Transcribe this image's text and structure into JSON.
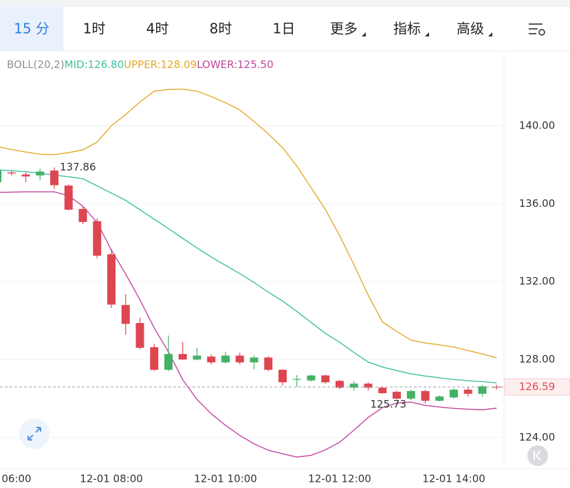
{
  "tabs": [
    "15 分",
    "1时",
    "4时",
    "8时",
    "1日",
    "更多",
    "指标",
    "高级"
  ],
  "active_tab": 0,
  "chart_data": {
    "type": "candlestick",
    "indicator": "BOLL(20,2)",
    "categories": [
      "06:00",
      null,
      null,
      null,
      null,
      null,
      null,
      null,
      "12-01 08:00",
      null,
      null,
      null,
      null,
      null,
      null,
      null,
      "12-01 10:00",
      null,
      null,
      null,
      null,
      null,
      null,
      null,
      "12-01 12:00",
      null,
      null,
      null,
      null,
      null,
      null,
      null,
      "12-01 14:00",
      null,
      null,
      null
    ],
    "open": [
      137.1,
      137.6,
      137.5,
      137.45,
      137.7,
      136.93,
      135.73,
      135.1,
      133.4,
      130.8,
      129.87,
      128.63,
      127.47,
      128.28,
      128.0,
      128.15,
      127.85,
      128.2,
      127.85,
      128.1,
      127.47,
      126.97,
      126.92,
      127.18,
      126.9,
      126.55,
      126.76,
      126.55,
      126.34,
      125.99,
      126.38,
      125.88,
      126.05,
      126.45,
      126.24,
      126.6
    ],
    "high": [
      137.8,
      137.7,
      137.6,
      137.8,
      137.86,
      136.98,
      135.83,
      135.24,
      133.68,
      131.35,
      130.15,
      128.81,
      129.23,
      128.9,
      128.6,
      128.26,
      128.4,
      128.35,
      128.2,
      128.17,
      127.5,
      127.2,
      127.2,
      127.22,
      126.95,
      126.9,
      126.83,
      126.62,
      126.4,
      126.45,
      126.45,
      126.15,
      126.52,
      126.59,
      126.7,
      126.7
    ],
    "low": [
      137.0,
      137.45,
      137.1,
      137.2,
      136.75,
      135.66,
      134.95,
      133.19,
      130.65,
      129.27,
      128.53,
      127.4,
      127.4,
      127.98,
      127.95,
      127.75,
      127.8,
      127.75,
      127.5,
      127.4,
      126.66,
      126.6,
      126.87,
      126.76,
      126.48,
      126.41,
      126.41,
      126.23,
      125.95,
      125.9,
      125.73,
      125.85,
      126.0,
      126.1,
      126.1,
      126.45
    ],
    "close": [
      137.7,
      137.55,
      137.4,
      137.65,
      136.95,
      135.69,
      135.06,
      133.33,
      130.82,
      129.83,
      128.6,
      127.47,
      128.28,
      128.0,
      128.2,
      127.85,
      128.2,
      127.85,
      128.1,
      127.47,
      126.83,
      127.0,
      127.18,
      126.83,
      126.55,
      126.76,
      126.55,
      126.27,
      125.99,
      126.38,
      125.88,
      126.1,
      126.45,
      126.24,
      126.62,
      126.59
    ],
    "up_color": "#45b165",
    "down_color": "#dd4651",
    "series": [
      {
        "name": "MID",
        "legend_label": "MID:126.80",
        "color": "#3fbf9f",
        "values": [
          137.74,
          137.69,
          137.64,
          137.56,
          137.47,
          137.38,
          137.28,
          136.91,
          136.54,
          136.17,
          135.69,
          135.2,
          134.72,
          134.22,
          133.73,
          133.26,
          132.83,
          132.41,
          131.95,
          131.46,
          131.0,
          130.47,
          129.9,
          129.34,
          128.88,
          128.36,
          127.87,
          127.61,
          127.43,
          127.26,
          127.15,
          127.06,
          126.97,
          126.91,
          126.86,
          126.8
        ]
      },
      {
        "name": "UPPER",
        "legend_label": "UPPER:128.09",
        "color": "#e5a828",
        "values": [
          138.94,
          138.78,
          138.65,
          138.54,
          138.52,
          138.62,
          138.76,
          139.16,
          140.0,
          140.58,
          141.22,
          141.78,
          141.86,
          141.88,
          141.78,
          141.5,
          141.18,
          140.81,
          140.22,
          139.58,
          138.87,
          137.93,
          136.82,
          135.7,
          134.36,
          132.87,
          131.3,
          129.93,
          129.44,
          128.99,
          128.85,
          128.75,
          128.64,
          128.46,
          128.28,
          128.09
        ]
      },
      {
        "name": "LOWER",
        "legend_label": "LOWER:125.50",
        "color": "#c2469e",
        "values": [
          136.58,
          136.59,
          136.61,
          136.61,
          136.61,
          136.41,
          135.87,
          135.03,
          133.62,
          132.39,
          131.07,
          129.62,
          128.39,
          126.96,
          125.95,
          125.21,
          124.62,
          124.1,
          123.67,
          123.34,
          123.16,
          122.99,
          123.08,
          123.36,
          123.75,
          124.37,
          125.02,
          125.53,
          125.76,
          125.81,
          125.64,
          125.56,
          125.49,
          125.45,
          125.42,
          125.5
        ]
      }
    ],
    "ylim": [
      122.39,
      143.81
    ],
    "yticks": [
      {
        "value": 124,
        "label": "124.00"
      },
      {
        "value": 128,
        "label": "128.00"
      },
      {
        "value": 132,
        "label": "132.00"
      },
      {
        "value": 136,
        "label": "136.00"
      },
      {
        "value": 140,
        "label": "140.00"
      }
    ],
    "grid": true
  }
}
